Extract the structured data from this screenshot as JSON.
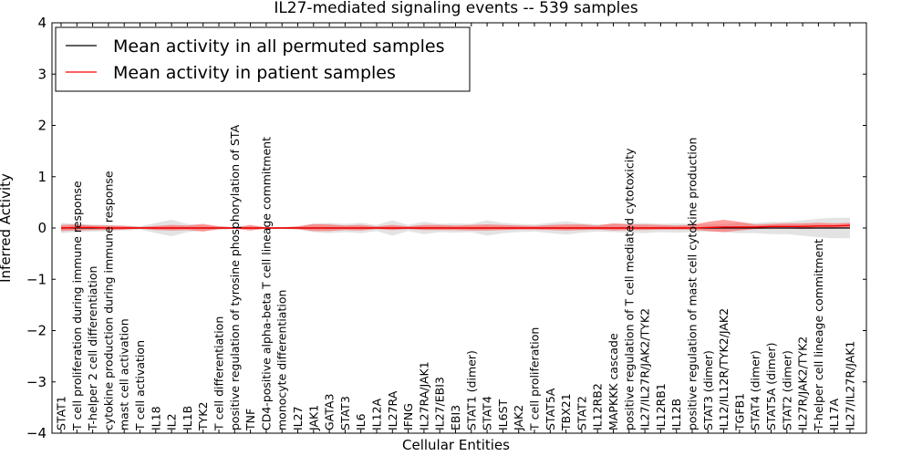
{
  "chart_data": {
    "type": "line",
    "title": "IL27-mediated signaling events -- 539 samples",
    "xlabel": "Cellular Entities",
    "ylabel": "Inferred Activity",
    "ylim": [
      -4,
      4
    ],
    "yticks": [
      -4,
      -3,
      -2,
      -1,
      0,
      1,
      2,
      3,
      4
    ],
    "ytick_labels": [
      "−4",
      "−3",
      "−2",
      "−1",
      "0",
      "1",
      "2",
      "3",
      "4"
    ],
    "legend": {
      "position": "top-left",
      "entries": [
        {
          "label": "Mean activity in all permuted samples",
          "color": "#000000"
        },
        {
          "label": "Mean activity in patient samples",
          "color": "#ff0000"
        }
      ]
    },
    "categories": [
      "STAT1",
      "T cell proliferation during immune response",
      "T-helper 2 cell differentiation",
      "cytokine production during immune response",
      "mast cell activation",
      "T cell activation",
      "IL18",
      "IL2",
      "IL1B",
      "TYK2",
      "T cell differentiation",
      "positive regulation of tyrosine phosphorylation of STA",
      "TNF",
      "CD4-positive alpha-beta T cell lineage commitment",
      "monocyte differentiation",
      "IL27",
      "JAK1",
      "GATA3",
      "STAT3",
      "IL6",
      "IL12A",
      "IL27RA",
      "IFNG",
      "IL27RA/JAK1",
      "IL27/EBI3",
      "EBI3",
      "STAT1 (dimer)",
      "STAT4",
      "IL6ST",
      "JAK2",
      "T cell proliferation",
      "STAT5A",
      "TBX21",
      "STAT2",
      "IL12RB2",
      "MAPKKK cascade",
      "positive regulation of T cell mediated cytotoxicity",
      "IL27/IL27R/JAK2/TYK2",
      "IL12RB1",
      "IL12B",
      "positive regulation of mast cell cytokine production",
      "STAT3 (dimer)",
      "IL12/IL12R/TYK2/JAK2",
      "TGFB1",
      "STAT4 (dimer)",
      "STAT5A (dimer)",
      "STAT2 (dimer)",
      "IL27R/JAK2/TYK2",
      "T-helper cell lineage commitment",
      "IL17A",
      "IL27/IL27R/JAK1"
    ],
    "series": [
      {
        "name": "Mean activity in all permuted samples",
        "color": "#000000",
        "values": [
          0,
          0,
          0,
          0,
          0,
          0,
          0,
          0,
          0,
          0,
          0,
          0,
          0,
          0,
          0,
          0,
          0,
          0,
          0,
          0,
          0,
          0,
          0,
          0,
          0,
          0,
          0,
          0,
          0,
          0,
          0,
          0,
          0,
          0,
          0,
          0,
          0,
          0,
          0,
          0,
          0,
          0,
          0,
          0,
          0,
          0,
          0,
          0,
          0,
          0,
          0
        ],
        "band_upper": [
          0.1,
          0.08,
          0.07,
          0.06,
          0.05,
          0.03,
          0.1,
          0.16,
          0.08,
          0.05,
          0.04,
          0.02,
          0.03,
          0.02,
          0.02,
          0.03,
          0.08,
          0.1,
          0.08,
          0.1,
          0.06,
          0.15,
          0.06,
          0.12,
          0.08,
          0.09,
          0.08,
          0.15,
          0.1,
          0.08,
          0.07,
          0.1,
          0.13,
          0.09,
          0.07,
          0.08,
          0.09,
          0.1,
          0.08,
          0.09,
          0.08,
          0.07,
          0.08,
          0.1,
          0.1,
          0.12,
          0.12,
          0.15,
          0.18,
          0.2,
          0.2
        ],
        "band_lower": [
          -0.1,
          -0.08,
          -0.07,
          -0.06,
          -0.05,
          -0.03,
          -0.1,
          -0.16,
          -0.08,
          -0.05,
          -0.04,
          -0.02,
          -0.03,
          -0.02,
          -0.02,
          -0.03,
          -0.08,
          -0.1,
          -0.08,
          -0.1,
          -0.06,
          -0.15,
          -0.06,
          -0.12,
          -0.08,
          -0.09,
          -0.08,
          -0.15,
          -0.1,
          -0.08,
          -0.07,
          -0.1,
          -0.13,
          -0.09,
          -0.07,
          -0.08,
          -0.09,
          -0.1,
          -0.08,
          -0.09,
          -0.08,
          -0.07,
          -0.08,
          -0.1,
          -0.1,
          -0.12,
          -0.12,
          -0.15,
          -0.18,
          -0.2,
          -0.2
        ]
      },
      {
        "name": "Mean activity in patient samples",
        "color": "#ff0000",
        "values": [
          0.0,
          0.01,
          0.01,
          0.0,
          0.0,
          0.0,
          0.0,
          0.0,
          0.0,
          0.0,
          0.0,
          0.0,
          0.0,
          0.0,
          0.0,
          0.0,
          0.0,
          0.0,
          0.0,
          0.0,
          0.0,
          0.0,
          0.0,
          0.0,
          0.0,
          0.0,
          0.0,
          0.0,
          0.0,
          0.0,
          0.0,
          0.0,
          0.0,
          0.0,
          0.0,
          0.0,
          0.0,
          0.0,
          0.0,
          0.0,
          0.0,
          0.01,
          0.02,
          0.02,
          0.02,
          0.03,
          0.03,
          0.03,
          0.04,
          0.04,
          0.05
        ],
        "band_upper": [
          0.06,
          0.07,
          0.05,
          0.05,
          0.04,
          0.02,
          0.04,
          0.06,
          0.05,
          0.08,
          0.03,
          0.01,
          0.06,
          0.01,
          0.01,
          0.03,
          0.08,
          0.07,
          0.05,
          0.06,
          0.03,
          0.06,
          0.03,
          0.06,
          0.06,
          0.05,
          0.06,
          0.07,
          0.06,
          0.05,
          0.04,
          0.06,
          0.07,
          0.07,
          0.05,
          0.09,
          0.07,
          0.07,
          0.06,
          0.05,
          0.06,
          0.12,
          0.16,
          0.12,
          0.07,
          0.08,
          0.09,
          0.09,
          0.1,
          0.09,
          0.1
        ],
        "band_lower": [
          -0.06,
          -0.05,
          -0.04,
          -0.04,
          -0.03,
          -0.01,
          -0.04,
          -0.05,
          -0.04,
          -0.07,
          -0.02,
          -0.01,
          -0.05,
          -0.01,
          -0.01,
          -0.02,
          -0.06,
          -0.06,
          -0.04,
          -0.05,
          -0.02,
          -0.04,
          -0.02,
          -0.04,
          -0.04,
          -0.04,
          -0.05,
          -0.05,
          -0.04,
          -0.03,
          -0.03,
          -0.04,
          -0.05,
          -0.04,
          -0.03,
          -0.05,
          -0.04,
          -0.04,
          -0.03,
          -0.03,
          -0.03,
          -0.06,
          -0.08,
          -0.05,
          -0.02,
          -0.01,
          -0.01,
          -0.02,
          -0.01,
          -0.01,
          0.0
        ]
      }
    ]
  }
}
